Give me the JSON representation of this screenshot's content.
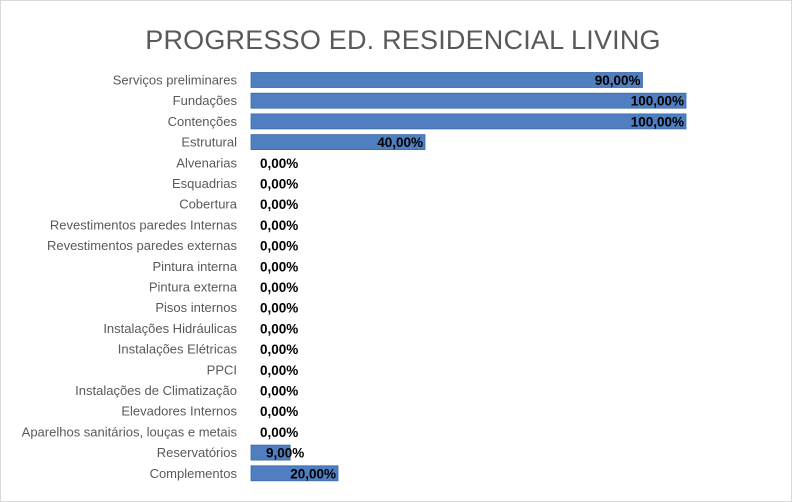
{
  "chart_data": {
    "type": "bar",
    "orientation": "horizontal",
    "title": "PROGRESSO ED. RESIDENCIAL LIVING",
    "categories": [
      "Serviços preliminares",
      "Fundações",
      "Contenções",
      "Estrutural",
      "Alvenarias",
      "Esquadrias",
      "Cobertura",
      "Revestimentos paredes Internas",
      "Revestimentos paredes externas",
      "Pintura interna",
      "Pintura externa",
      "Pisos internos",
      "Instalações Hidráulicas",
      "Instalações Elétricas",
      "PPCI",
      "Instalações de Climatização",
      "Elevadores Internos",
      "Aparelhos sanitários, louças e metais",
      "Reservatórios",
      "Complementos"
    ],
    "values": [
      90,
      100,
      100,
      40,
      0,
      0,
      0,
      0,
      0,
      0,
      0,
      0,
      0,
      0,
      0,
      0,
      0,
      0,
      9,
      20
    ],
    "value_labels": [
      "90,00%",
      "100,00%",
      "100,00%",
      "40,00%",
      "0,00%",
      "0,00%",
      "0,00%",
      "0,00%",
      "0,00%",
      "0,00%",
      "0,00%",
      "0,00%",
      "0,00%",
      "0,00%",
      "0,00%",
      "0,00%",
      "0,00%",
      "0,00%",
      "9,00%",
      "20,00%"
    ],
    "xlim": [
      0,
      100
    ],
    "unit": "%",
    "xlabel": "",
    "ylabel": "",
    "grid": false,
    "legend": "none",
    "bar_color": "#4f7fc0",
    "bar_edge_color": "#3a6aa8",
    "label_color": "#595959",
    "value_label_color": "#000000"
  }
}
